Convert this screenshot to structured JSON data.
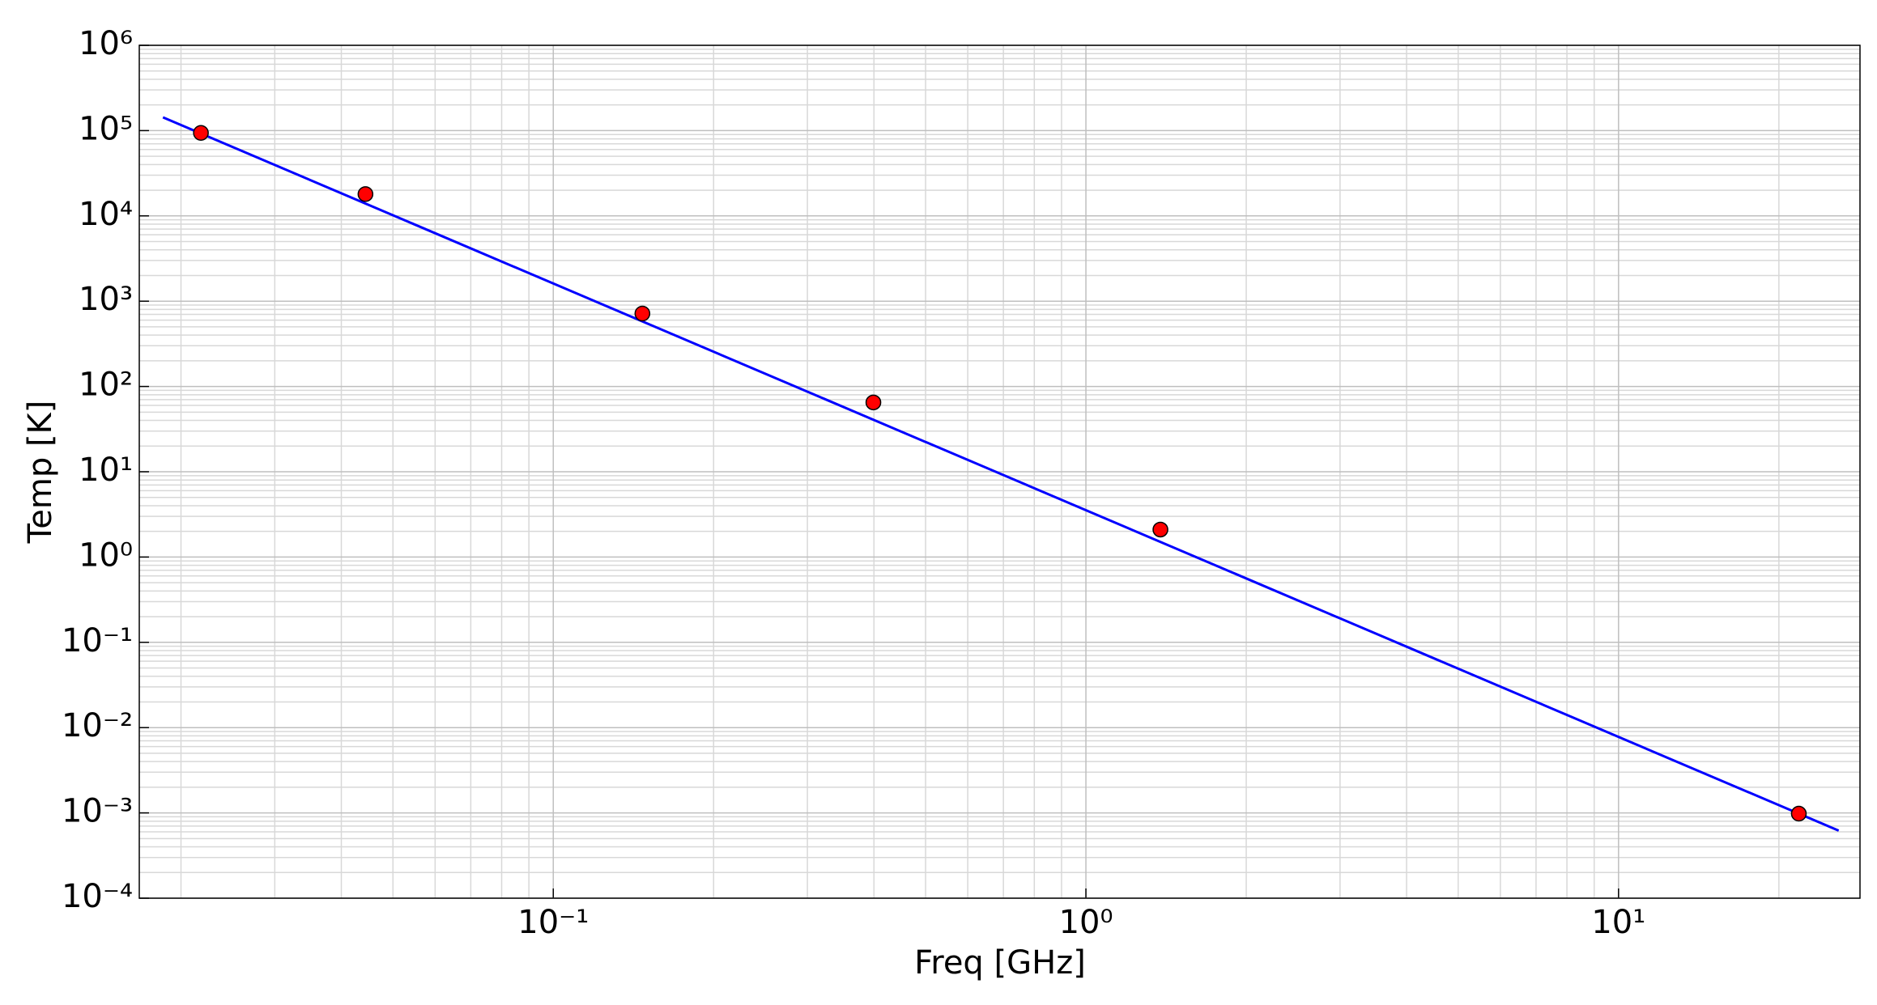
{
  "chart_data": {
    "type": "scatter",
    "x_label": "Freq [GHz]",
    "y_label": "Temp [K]",
    "xlog": true,
    "ylog": true,
    "grid": true,
    "minor_grid": true,
    "xlim": [
      0.0167,
      28.4
    ],
    "ylim": [
      0.0001,
      1000000
    ],
    "xticks": [
      {
        "value": 0.1,
        "label": "10⁻¹"
      },
      {
        "value": 1,
        "label": "10⁰"
      },
      {
        "value": 10,
        "label": "10¹"
      }
    ],
    "yticks": [
      {
        "value": 0.0001,
        "label": "10⁻⁴"
      },
      {
        "value": 0.001,
        "label": "10⁻³"
      },
      {
        "value": 0.01,
        "label": "10⁻²"
      },
      {
        "value": 0.1,
        "label": "10⁻¹"
      },
      {
        "value": 1,
        "label": "10⁰"
      },
      {
        "value": 10,
        "label": "10¹"
      },
      {
        "value": 100,
        "label": "10²"
      },
      {
        "value": 1000,
        "label": "10³"
      },
      {
        "value": 10000,
        "label": "10⁴"
      },
      {
        "value": 100000,
        "label": "10⁵"
      },
      {
        "value": 1000000,
        "label": "10⁶"
      }
    ],
    "series": [
      {
        "style": "line",
        "color": "#0000ff",
        "x": [
          0.0185,
          25.9
        ],
        "values": [
          143000,
          0.00062
        ]
      },
      {
        "style": "markers",
        "color": "#ff0000",
        "x": [
          0.0218,
          0.0444,
          0.147,
          0.399,
          1.38,
          21.8
        ],
        "values": [
          94000,
          18000,
          716,
          65,
          2.1,
          0.00098
        ]
      }
    ]
  }
}
